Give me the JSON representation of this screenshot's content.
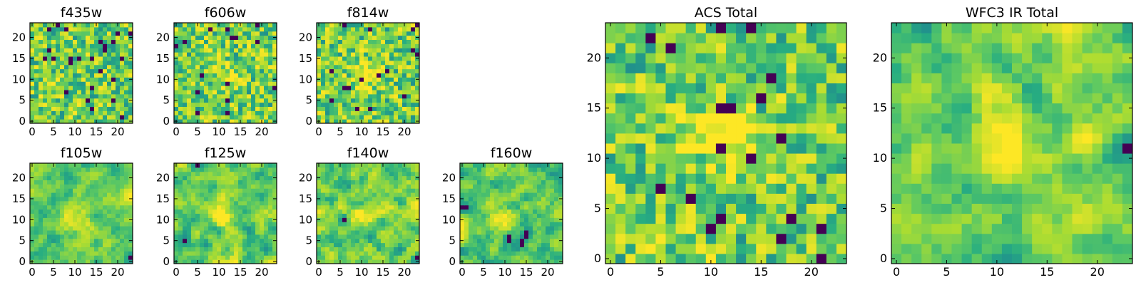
{
  "chart_data": [
    {
      "type": "heatmap",
      "title": "f435w",
      "grid": [
        24,
        24
      ],
      "xticks": [
        "0",
        "5",
        "10",
        "15",
        "20"
      ],
      "yticks": [
        "0",
        "5",
        "10",
        "15",
        "20"
      ],
      "texture": "fine-noise",
      "seed": 11,
      "smooth": 0.0,
      "blob": null
    },
    {
      "type": "heatmap",
      "title": "f606w",
      "grid": [
        24,
        24
      ],
      "xticks": [
        "0",
        "5",
        "10",
        "15",
        "20"
      ],
      "yticks": [
        "0",
        "5",
        "10",
        "15",
        "20"
      ],
      "texture": "fine-noise",
      "seed": 23,
      "smooth": 0.1,
      "blob": [
        12,
        11,
        0.35
      ]
    },
    {
      "type": "heatmap",
      "title": "f814w",
      "grid": [
        24,
        24
      ],
      "xticks": [
        "0",
        "5",
        "10",
        "15",
        "20"
      ],
      "yticks": [
        "0",
        "5",
        "10",
        "15",
        "20"
      ],
      "texture": "fine-noise",
      "seed": 37,
      "smooth": 0.1,
      "blob": [
        11,
        11,
        0.45
      ]
    },
    {
      "type": "heatmap",
      "title": "f105w",
      "grid": [
        24,
        24
      ],
      "xticks": [
        "0",
        "5",
        "10",
        "15",
        "20"
      ],
      "yticks": [
        "0",
        "5",
        "10",
        "15",
        "20"
      ],
      "texture": "smooth-noise",
      "seed": 41,
      "smooth": 0.6,
      "blob": [
        12,
        10,
        0.3
      ]
    },
    {
      "type": "heatmap",
      "title": "f125w",
      "grid": [
        24,
        24
      ],
      "xticks": [
        "0",
        "5",
        "10",
        "15",
        "20"
      ],
      "yticks": [
        "0",
        "5",
        "10",
        "15",
        "20"
      ],
      "texture": "smooth-noise",
      "seed": 53,
      "smooth": 0.6,
      "blob": [
        11,
        11,
        0.3
      ]
    },
    {
      "type": "heatmap",
      "title": "f140w",
      "grid": [
        24,
        24
      ],
      "xticks": [
        "0",
        "5",
        "10",
        "15",
        "20"
      ],
      "yticks": [
        "0",
        "5",
        "10",
        "15",
        "20"
      ],
      "texture": "smooth-noise",
      "seed": 67,
      "smooth": 0.6,
      "blob": [
        10,
        11,
        0.3
      ]
    },
    {
      "type": "heatmap",
      "title": "f160w",
      "grid": [
        24,
        24
      ],
      "xticks": [
        "0",
        "5",
        "10",
        "15",
        "20"
      ],
      "yticks": [
        "0",
        "5",
        "10",
        "15",
        "20"
      ],
      "texture": "smooth-noise",
      "seed": 79,
      "smooth": 0.6,
      "blob": [
        10,
        11,
        0.35
      ]
    },
    {
      "type": "heatmap",
      "title": "ACS Total",
      "grid": [
        24,
        24
      ],
      "xticks": [
        "0",
        "5",
        "10",
        "15",
        "20"
      ],
      "yticks": [
        "0",
        "5",
        "10",
        "15",
        "20"
      ],
      "texture": "fine-noise",
      "seed": 91,
      "smooth": 0.2,
      "blob": [
        11,
        12,
        0.5
      ]
    },
    {
      "type": "heatmap",
      "title": "WFC3 IR Total",
      "grid": [
        24,
        24
      ],
      "xticks": [
        "0",
        "5",
        "10",
        "15",
        "20"
      ],
      "yticks": [
        "0",
        "5",
        "10",
        "15",
        "20"
      ],
      "texture": "smooth-noise",
      "seed": 103,
      "smooth": 0.55,
      "blob": [
        11,
        12,
        0.45
      ]
    }
  ],
  "colormap": [
    "#440154",
    "#3b528b",
    "#21918c",
    "#27ad81",
    "#5ec962",
    "#aadc32",
    "#fde725"
  ]
}
